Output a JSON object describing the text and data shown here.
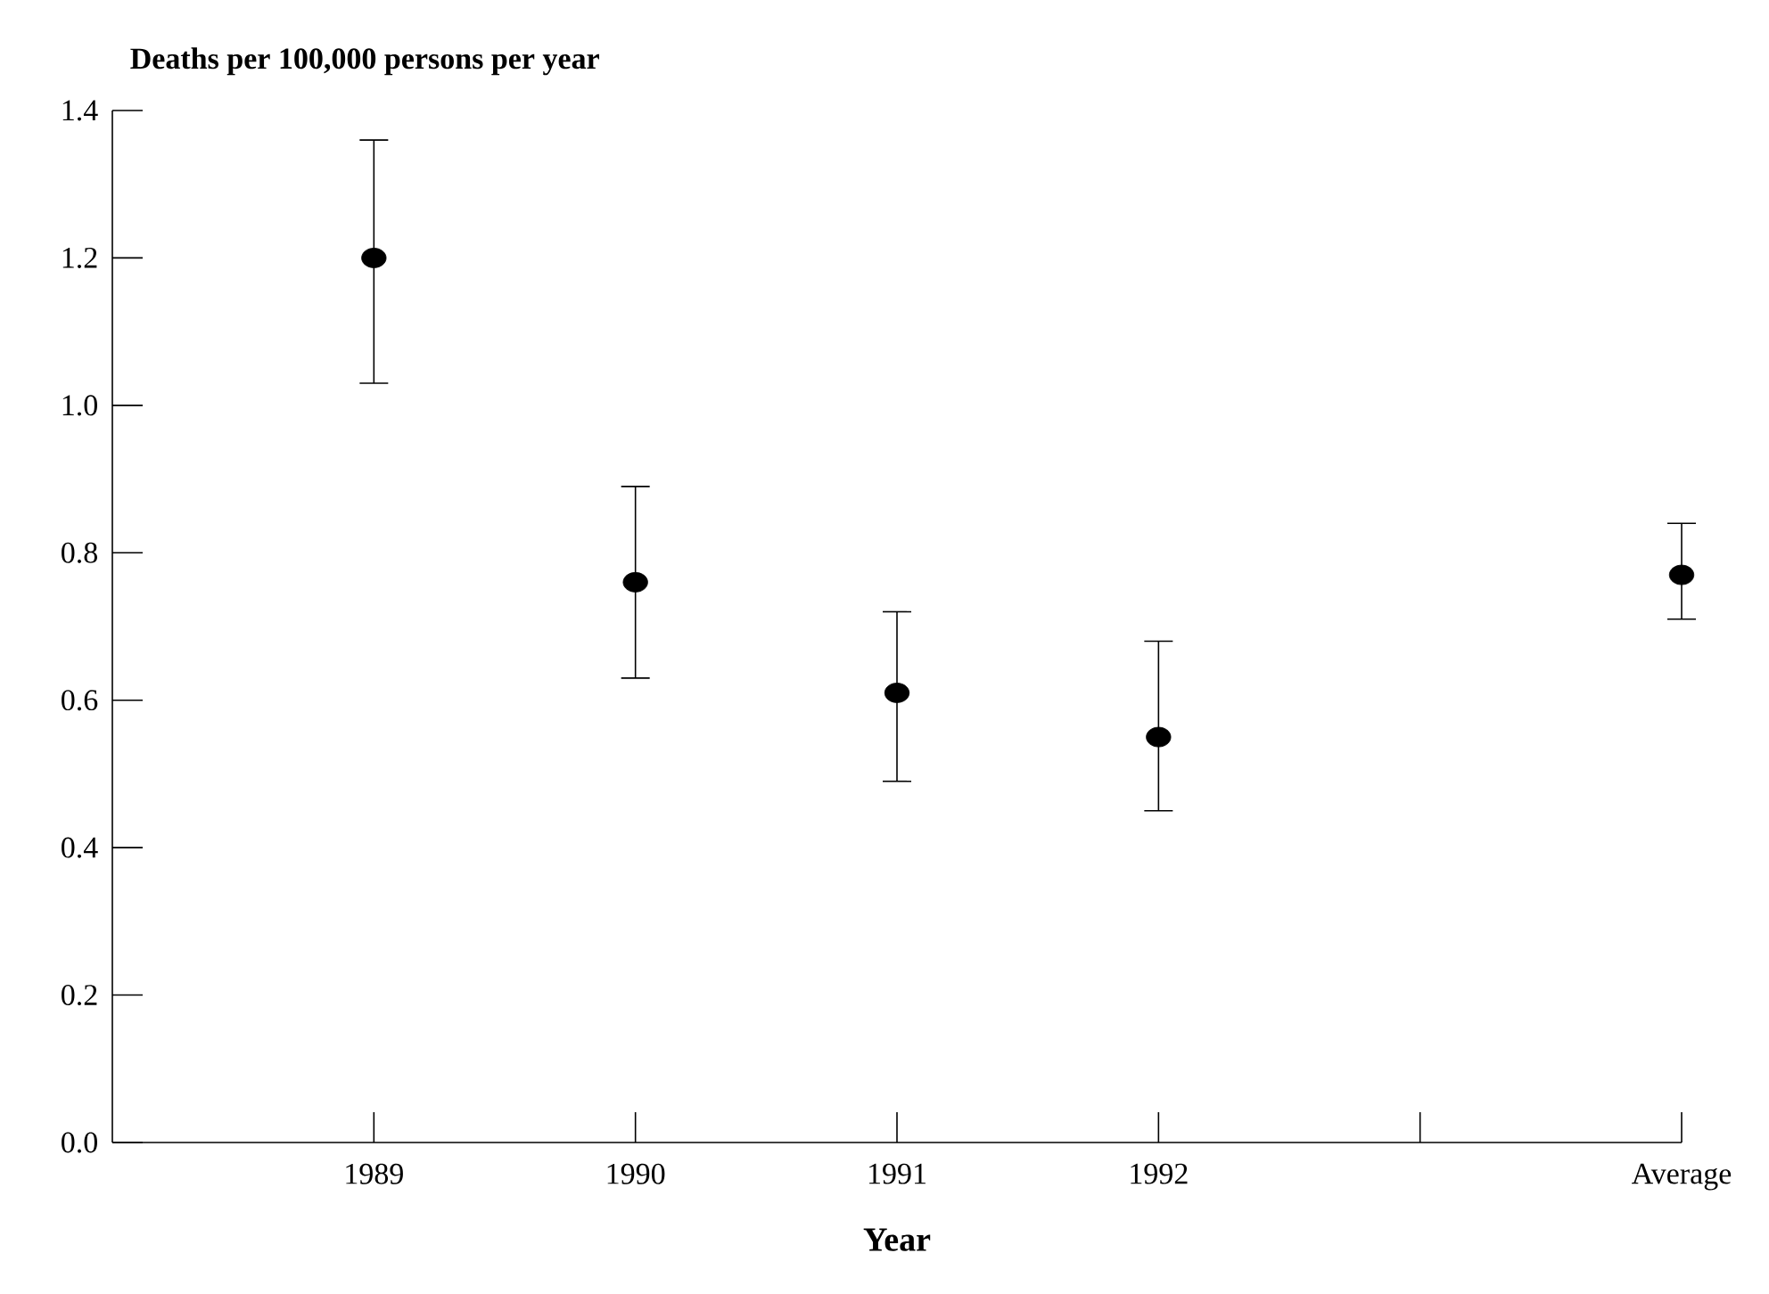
{
  "chart_data": {
    "type": "scatter",
    "ylabel": "Deaths per 100,000 persons per year",
    "xlabel": "Year",
    "categories": [
      "1989",
      "1990",
      "1991",
      "1992",
      null,
      "Average"
    ],
    "values": [
      1.2,
      0.76,
      0.61,
      0.55,
      null,
      0.77
    ],
    "errors": [
      [
        1.03,
        1.36
      ],
      [
        0.63,
        0.89
      ],
      [
        0.49,
        0.72
      ],
      [
        0.45,
        0.68
      ],
      null,
      [
        0.71,
        0.84
      ]
    ],
    "color": "#000000",
    "marker": "circle",
    "ylim": [
      0,
      1.4
    ],
    "yticks": [
      {
        "value": 0,
        "label": "0.0"
      },
      0.2,
      0.4,
      0.6,
      0.8,
      {
        "value": 1,
        "label": "1.0"
      },
      1.2,
      1.4
    ],
    "grid": false
  }
}
